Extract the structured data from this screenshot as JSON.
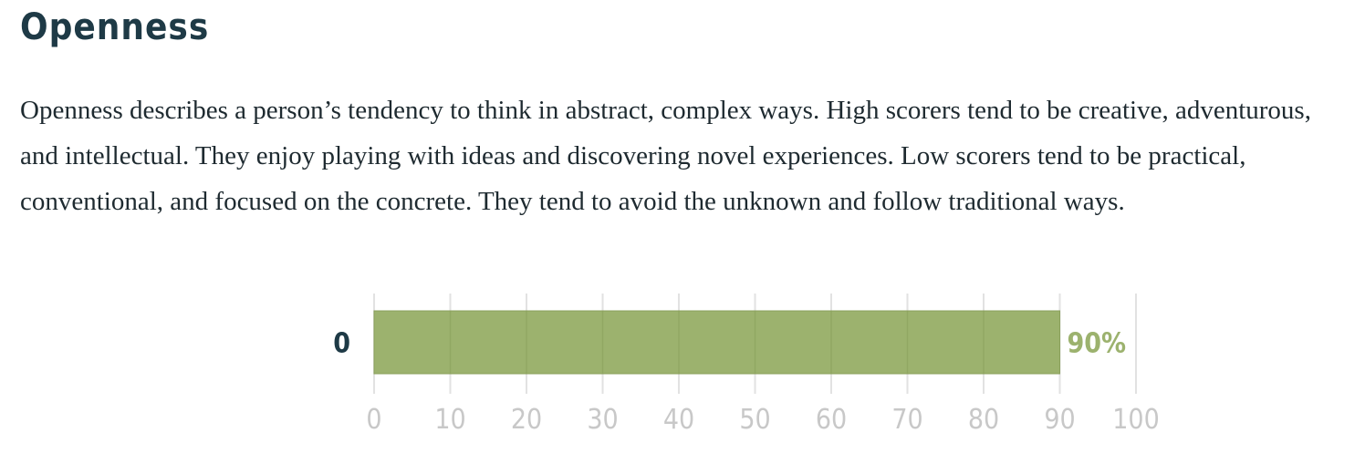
{
  "header": {
    "title": "Openness"
  },
  "description": "Openness describes a person’s tendency to think in abstract, complex ways. High scorers tend to be creative, adventurous, and intellectual. They enjoy playing with ideas and discovering novel experiences. Low scorers tend to be practical, conventional, and focused on the concrete. They tend to avoid the unknown and follow traditional ways.",
  "chart_data": {
    "type": "bar",
    "orientation": "horizontal",
    "categories": [
      "0"
    ],
    "values": [
      90
    ],
    "value_labels": [
      "90%"
    ],
    "xlim": [
      0,
      100
    ],
    "xticks": [
      0,
      10,
      20,
      30,
      40,
      50,
      60,
      70,
      80,
      90,
      100
    ],
    "xtick_labels": [
      "0",
      "10",
      "20",
      "30",
      "40",
      "50",
      "60",
      "70",
      "80",
      "90",
      "100"
    ],
    "grid": true,
    "title": "",
    "xlabel": "",
    "ylabel": "",
    "colors": {
      "bar": "#9cb26e",
      "bar_border": "#8aa05c",
      "value_label": "#9cb26e",
      "category_label": "#1e3a46",
      "tick_label": "#c8c8c8",
      "grid": "#e2e2e2"
    }
  }
}
